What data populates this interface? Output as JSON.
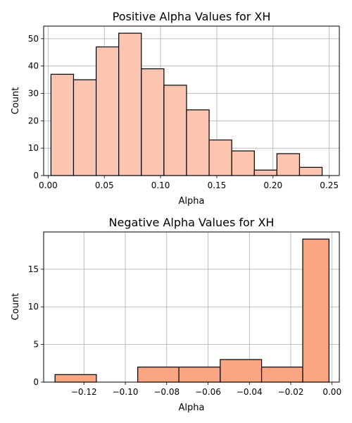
{
  "chart_data": [
    {
      "type": "bar",
      "title": "Positive Alpha Values for XH",
      "xlabel": "Alpha",
      "ylabel": "Count",
      "xlim": [
        -0.004,
        0.259
      ],
      "ylim": [
        0,
        54.6
      ],
      "xticks": [
        0.0,
        0.05,
        0.1,
        0.15,
        0.2,
        0.25
      ],
      "xtick_labels": [
        "0.00",
        "0.05",
        "0.10",
        "0.15",
        "0.20",
        "0.25"
      ],
      "yticks": [
        0,
        10,
        20,
        30,
        40,
        50
      ],
      "ytick_labels": [
        "0",
        "10",
        "20",
        "30",
        "40",
        "50"
      ],
      "grid": true,
      "bar_color": "#fcc5b0",
      "edge_color": "#000000",
      "bin_edges": [
        0.0025,
        0.0226,
        0.0427,
        0.0628,
        0.0829,
        0.103,
        0.1231,
        0.1432,
        0.1633,
        0.1834,
        0.2035,
        0.2236,
        0.2437
      ],
      "values": [
        37,
        35,
        47,
        52,
        39,
        33,
        24,
        13,
        9,
        2,
        8,
        3
      ]
    },
    {
      "type": "bar",
      "title": "Negative Alpha Values for XH",
      "xlabel": "Alpha",
      "ylabel": "Count",
      "xlim": [
        -0.1395,
        0.0035
      ],
      "ylim": [
        0,
        19.95
      ],
      "xticks": [
        -0.12,
        -0.1,
        -0.08,
        -0.06,
        -0.04,
        -0.02,
        0.0
      ],
      "xtick_labels": [
        "−0.12",
        "−0.10",
        "−0.08",
        "−0.06",
        "−0.04",
        "−0.02",
        "0.00"
      ],
      "yticks": [
        0,
        5,
        10,
        15
      ],
      "ytick_labels": [
        "0",
        "5",
        "10",
        "15"
      ],
      "grid": true,
      "bar_color": "#fca583",
      "edge_color": "#000000",
      "bin_edges": [
        -0.134,
        -0.114,
        -0.094,
        -0.0741,
        -0.0541,
        -0.0341,
        -0.0142,
        -0.0015
      ],
      "values": [
        1,
        0,
        2,
        2,
        3,
        2,
        19
      ]
    }
  ]
}
